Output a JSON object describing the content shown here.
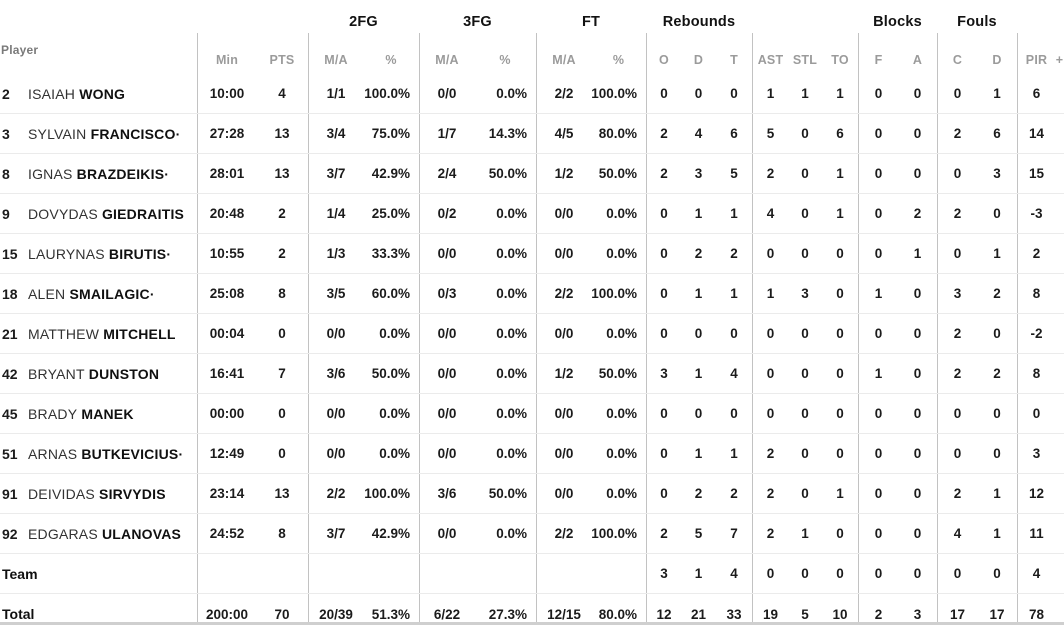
{
  "header": {
    "player_col": "Player",
    "group_labels": {
      "fg2": "2FG",
      "fg3": "3FG",
      "ft": "FT",
      "rebounds": "Rebounds",
      "blocks": "Blocks",
      "fouls": "Fouls"
    },
    "columns": {
      "min": "Min",
      "pts": "PTS",
      "ma": "M/A",
      "pct": "%",
      "o": "O",
      "d_reb": "D",
      "t": "T",
      "ast": "AST",
      "stl": "STL",
      "to": "TO",
      "f": "F",
      "a": "A",
      "c": "C",
      "d_foul": "D",
      "pir": "PIR",
      "plus": "+"
    }
  },
  "starter_mark": "·",
  "players": [
    {
      "number": "2",
      "first": "ISAIAH",
      "last": "WONG",
      "starter": false,
      "min": "10:00",
      "pts": "4",
      "fg2_ma": "1/1",
      "fg2_pct": "100.0%",
      "fg3_ma": "0/0",
      "fg3_pct": "0.0%",
      "ft_ma": "2/2",
      "ft_pct": "100.0%",
      "reb_o": "0",
      "reb_d": "0",
      "reb_t": "0",
      "ast": "1",
      "stl": "1",
      "to": "1",
      "blk_f": "0",
      "blk_a": "0",
      "foul_c": "0",
      "foul_d": "1",
      "pir": "6"
    },
    {
      "number": "3",
      "first": "SYLVAIN",
      "last": "FRANCISCO",
      "starter": true,
      "min": "27:28",
      "pts": "13",
      "fg2_ma": "3/4",
      "fg2_pct": "75.0%",
      "fg3_ma": "1/7",
      "fg3_pct": "14.3%",
      "ft_ma": "4/5",
      "ft_pct": "80.0%",
      "reb_o": "2",
      "reb_d": "4",
      "reb_t": "6",
      "ast": "5",
      "stl": "0",
      "to": "6",
      "blk_f": "0",
      "blk_a": "0",
      "foul_c": "2",
      "foul_d": "6",
      "pir": "14"
    },
    {
      "number": "8",
      "first": "IGNAS",
      "last": "BRAZDEIKIS",
      "starter": true,
      "min": "28:01",
      "pts": "13",
      "fg2_ma": "3/7",
      "fg2_pct": "42.9%",
      "fg3_ma": "2/4",
      "fg3_pct": "50.0%",
      "ft_ma": "1/2",
      "ft_pct": "50.0%",
      "reb_o": "2",
      "reb_d": "3",
      "reb_t": "5",
      "ast": "2",
      "stl": "0",
      "to": "1",
      "blk_f": "0",
      "blk_a": "0",
      "foul_c": "0",
      "foul_d": "3",
      "pir": "15"
    },
    {
      "number": "9",
      "first": "DOVYDAS",
      "last": "GIEDRAITIS",
      "starter": false,
      "min": "20:48",
      "pts": "2",
      "fg2_ma": "1/4",
      "fg2_pct": "25.0%",
      "fg3_ma": "0/2",
      "fg3_pct": "0.0%",
      "ft_ma": "0/0",
      "ft_pct": "0.0%",
      "reb_o": "0",
      "reb_d": "1",
      "reb_t": "1",
      "ast": "4",
      "stl": "0",
      "to": "1",
      "blk_f": "0",
      "blk_a": "2",
      "foul_c": "2",
      "foul_d": "0",
      "pir": "-3"
    },
    {
      "number": "15",
      "first": "LAURYNAS",
      "last": "BIRUTIS",
      "starter": true,
      "min": "10:55",
      "pts": "2",
      "fg2_ma": "1/3",
      "fg2_pct": "33.3%",
      "fg3_ma": "0/0",
      "fg3_pct": "0.0%",
      "ft_ma": "0/0",
      "ft_pct": "0.0%",
      "reb_o": "0",
      "reb_d": "2",
      "reb_t": "2",
      "ast": "0",
      "stl": "0",
      "to": "0",
      "blk_f": "0",
      "blk_a": "1",
      "foul_c": "0",
      "foul_d": "1",
      "pir": "2"
    },
    {
      "number": "18",
      "first": "ALEN",
      "last": "SMAILAGIC",
      "starter": true,
      "min": "25:08",
      "pts": "8",
      "fg2_ma": "3/5",
      "fg2_pct": "60.0%",
      "fg3_ma": "0/3",
      "fg3_pct": "0.0%",
      "ft_ma": "2/2",
      "ft_pct": "100.0%",
      "reb_o": "0",
      "reb_d": "1",
      "reb_t": "1",
      "ast": "1",
      "stl": "3",
      "to": "0",
      "blk_f": "1",
      "blk_a": "0",
      "foul_c": "3",
      "foul_d": "2",
      "pir": "8"
    },
    {
      "number": "21",
      "first": "MATTHEW",
      "last": "MITCHELL",
      "starter": false,
      "min": "00:04",
      "pts": "0",
      "fg2_ma": "0/0",
      "fg2_pct": "0.0%",
      "fg3_ma": "0/0",
      "fg3_pct": "0.0%",
      "ft_ma": "0/0",
      "ft_pct": "0.0%",
      "reb_o": "0",
      "reb_d": "0",
      "reb_t": "0",
      "ast": "0",
      "stl": "0",
      "to": "0",
      "blk_f": "0",
      "blk_a": "0",
      "foul_c": "2",
      "foul_d": "0",
      "pir": "-2"
    },
    {
      "number": "42",
      "first": "BRYANT",
      "last": "DUNSTON",
      "starter": false,
      "min": "16:41",
      "pts": "7",
      "fg2_ma": "3/6",
      "fg2_pct": "50.0%",
      "fg3_ma": "0/0",
      "fg3_pct": "0.0%",
      "ft_ma": "1/2",
      "ft_pct": "50.0%",
      "reb_o": "3",
      "reb_d": "1",
      "reb_t": "4",
      "ast": "0",
      "stl": "0",
      "to": "0",
      "blk_f": "1",
      "blk_a": "0",
      "foul_c": "2",
      "foul_d": "2",
      "pir": "8"
    },
    {
      "number": "45",
      "first": "BRADY",
      "last": "MANEK",
      "starter": false,
      "min": "00:00",
      "pts": "0",
      "fg2_ma": "0/0",
      "fg2_pct": "0.0%",
      "fg3_ma": "0/0",
      "fg3_pct": "0.0%",
      "ft_ma": "0/0",
      "ft_pct": "0.0%",
      "reb_o": "0",
      "reb_d": "0",
      "reb_t": "0",
      "ast": "0",
      "stl": "0",
      "to": "0",
      "blk_f": "0",
      "blk_a": "0",
      "foul_c": "0",
      "foul_d": "0",
      "pir": "0"
    },
    {
      "number": "51",
      "first": "ARNAS",
      "last": "BUTKEVICIUS",
      "starter": true,
      "min": "12:49",
      "pts": "0",
      "fg2_ma": "0/0",
      "fg2_pct": "0.0%",
      "fg3_ma": "0/0",
      "fg3_pct": "0.0%",
      "ft_ma": "0/0",
      "ft_pct": "0.0%",
      "reb_o": "0",
      "reb_d": "1",
      "reb_t": "1",
      "ast": "2",
      "stl": "0",
      "to": "0",
      "blk_f": "0",
      "blk_a": "0",
      "foul_c": "0",
      "foul_d": "0",
      "pir": "3"
    },
    {
      "number": "91",
      "first": "DEIVIDAS",
      "last": "SIRVYDIS",
      "starter": false,
      "min": "23:14",
      "pts": "13",
      "fg2_ma": "2/2",
      "fg2_pct": "100.0%",
      "fg3_ma": "3/6",
      "fg3_pct": "50.0%",
      "ft_ma": "0/0",
      "ft_pct": "0.0%",
      "reb_o": "0",
      "reb_d": "2",
      "reb_t": "2",
      "ast": "2",
      "stl": "0",
      "to": "1",
      "blk_f": "0",
      "blk_a": "0",
      "foul_c": "2",
      "foul_d": "1",
      "pir": "12"
    },
    {
      "number": "92",
      "first": "EDGARAS",
      "last": "ULANOVAS",
      "starter": false,
      "min": "24:52",
      "pts": "8",
      "fg2_ma": "3/7",
      "fg2_pct": "42.9%",
      "fg3_ma": "0/0",
      "fg3_pct": "0.0%",
      "ft_ma": "2/2",
      "ft_pct": "100.0%",
      "reb_o": "2",
      "reb_d": "5",
      "reb_t": "7",
      "ast": "2",
      "stl": "1",
      "to": "0",
      "blk_f": "0",
      "blk_a": "0",
      "foul_c": "4",
      "foul_d": "1",
      "pir": "11"
    }
  ],
  "team_row": {
    "label": "Team",
    "min": "",
    "pts": "",
    "fg2_ma": "",
    "fg2_pct": "",
    "fg3_ma": "",
    "fg3_pct": "",
    "ft_ma": "",
    "ft_pct": "",
    "reb_o": "3",
    "reb_d": "1",
    "reb_t": "4",
    "ast": "0",
    "stl": "0",
    "to": "0",
    "blk_f": "0",
    "blk_a": "0",
    "foul_c": "0",
    "foul_d": "0",
    "pir": "4"
  },
  "total_row": {
    "label": "Total",
    "min": "200:00",
    "pts": "70",
    "fg2_ma": "20/39",
    "fg2_pct": "51.3%",
    "fg3_ma": "6/22",
    "fg3_pct": "27.3%",
    "ft_ma": "12/15",
    "ft_pct": "80.0%",
    "reb_o": "12",
    "reb_d": "21",
    "reb_t": "33",
    "ast": "19",
    "stl": "5",
    "to": "10",
    "blk_f": "2",
    "blk_a": "3",
    "foul_c": "17",
    "foul_d": "17",
    "pir": "78"
  }
}
